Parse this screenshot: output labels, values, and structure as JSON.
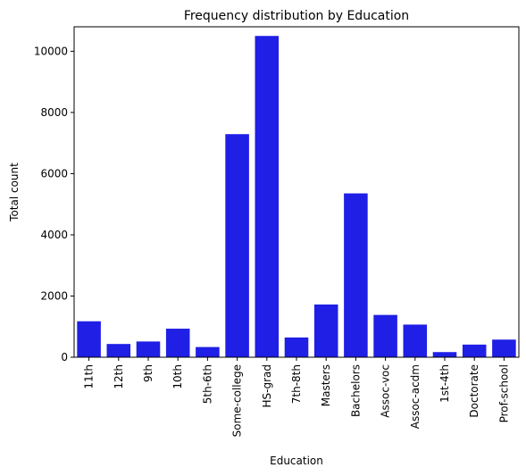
{
  "chart_data": {
    "type": "bar",
    "title": "Frequency distribution by Education",
    "xlabel": "Education",
    "ylabel": "Total count",
    "categories": [
      "11th",
      "12th",
      "9th",
      "10th",
      "5th-6th",
      "Some-college",
      "HS-grad",
      "7th-8th",
      "Masters",
      "Bachelors",
      "Assoc-voc",
      "Assoc-acdm",
      "1st-4th",
      "Doctorate",
      "Prof-school"
    ],
    "values": [
      1175,
      433,
      514,
      933,
      333,
      7291,
      10501,
      646,
      1723,
      5355,
      1382,
      1067,
      168,
      413,
      576
    ],
    "ylim": [
      0,
      10800
    ],
    "yticks": [
      0,
      2000,
      4000,
      6000,
      8000,
      10000
    ],
    "grid": false,
    "bar_color": "#1f1fe6"
  }
}
